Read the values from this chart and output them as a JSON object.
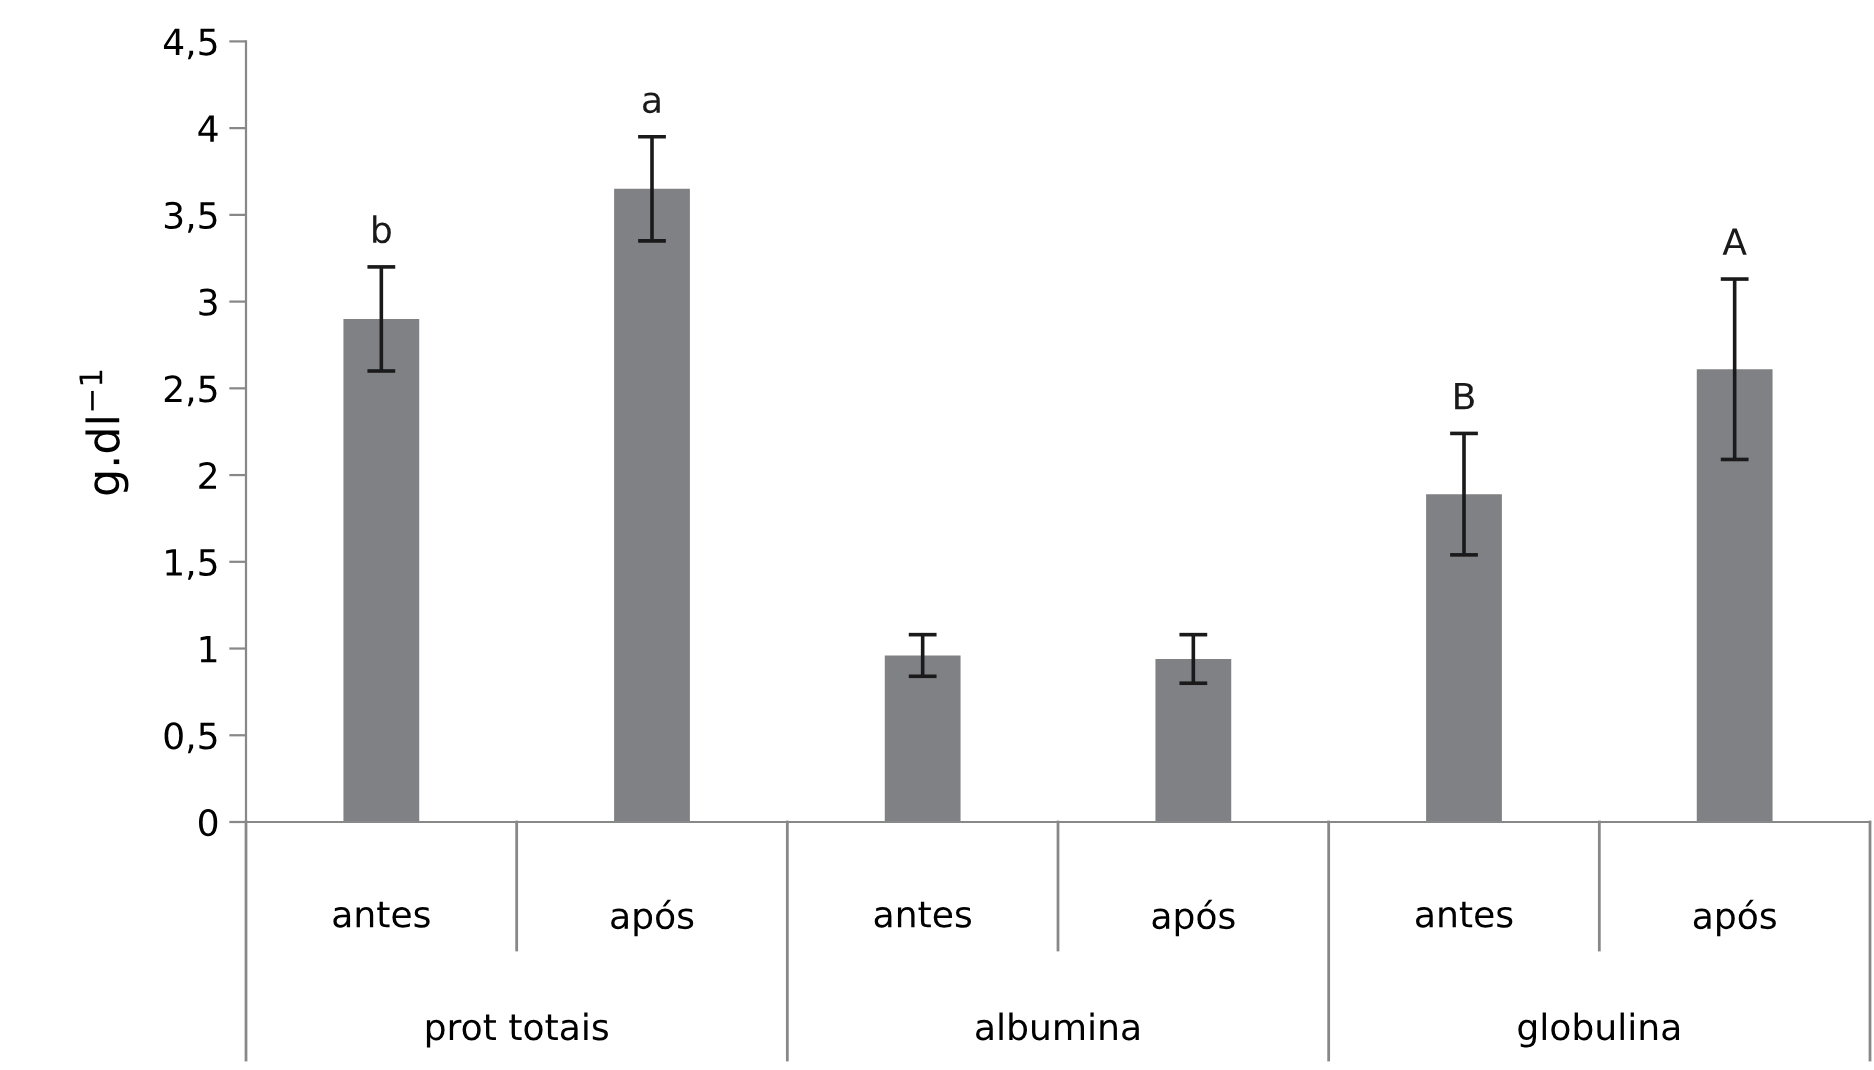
{
  "chart_data": {
    "type": "bar",
    "ylabel": "g.dl$^{−1}$",
    "categories": [
      "antes",
      "após",
      "antes",
      "após",
      "antes",
      "após"
    ],
    "values": [
      2.9,
      3.65,
      0.96,
      0.94,
      1.89,
      2.61
    ],
    "errors": [
      0.3,
      0.3,
      0.12,
      0.14,
      0.35,
      0.52
    ],
    "value_labels": [
      "b",
      "a",
      null,
      null,
      "B",
      "A"
    ],
    "color": "#808185",
    "annotations": [
      "prot totais",
      "albumina",
      "globulina"
    ],
    "ylim": [
      0,
      4.5
    ],
    "yticks": [
      0,
      {
        "value": 0.5,
        "label": "0,5"
      },
      1,
      {
        "value": 1.5,
        "label": "1,5"
      },
      2,
      {
        "value": 2.5,
        "label": "2,5"
      },
      3,
      {
        "value": 3.5,
        "label": "3,5"
      },
      4,
      {
        "value": 4.5,
        "label": "4,5"
      }
    ],
    "grid": false
  }
}
